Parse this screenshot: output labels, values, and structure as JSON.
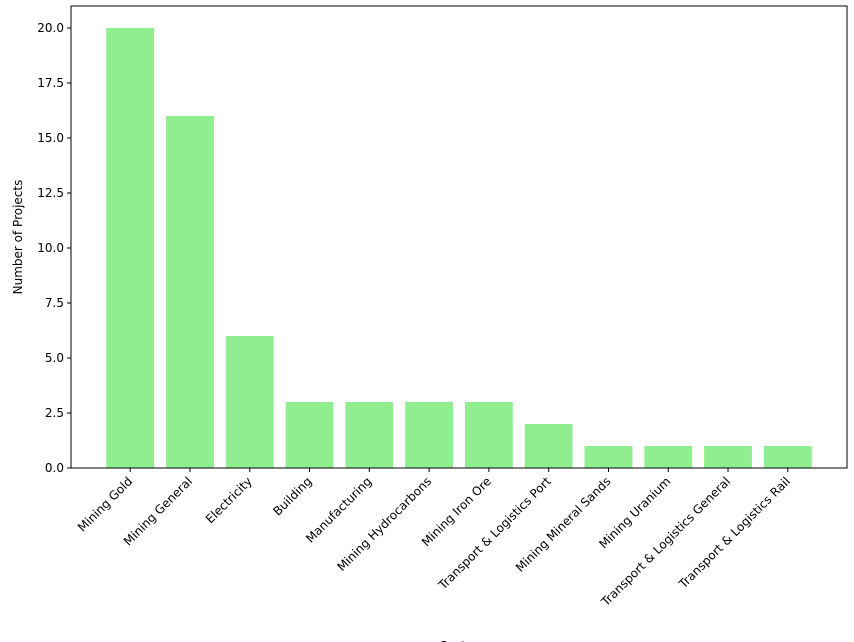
{
  "chart_data": {
    "type": "bar",
    "title": "",
    "xlabel": "Sector",
    "ylabel": "Number of Projects",
    "categories": [
      "Mining Gold",
      "Mining General",
      "Electricity",
      "Building",
      "Manufacturing",
      "Mining Hydrocarbons",
      "Mining Iron Ore",
      "Transport & Logistics Port",
      "Mining Mineral Sands",
      "Mining Uranium",
      "Transport & Logistics General",
      "Transport & Logistics Rail"
    ],
    "values": [
      20,
      16,
      6,
      3,
      3,
      3,
      3,
      2,
      1,
      1,
      1,
      1
    ],
    "ylim": [
      0,
      21
    ],
    "yticks": [
      "0.0",
      "2.5",
      "5.0",
      "7.5",
      "10.0",
      "12.5",
      "15.0",
      "17.5",
      "20.0"
    ],
    "bar_color": "#90EE90",
    "grid": false
  }
}
